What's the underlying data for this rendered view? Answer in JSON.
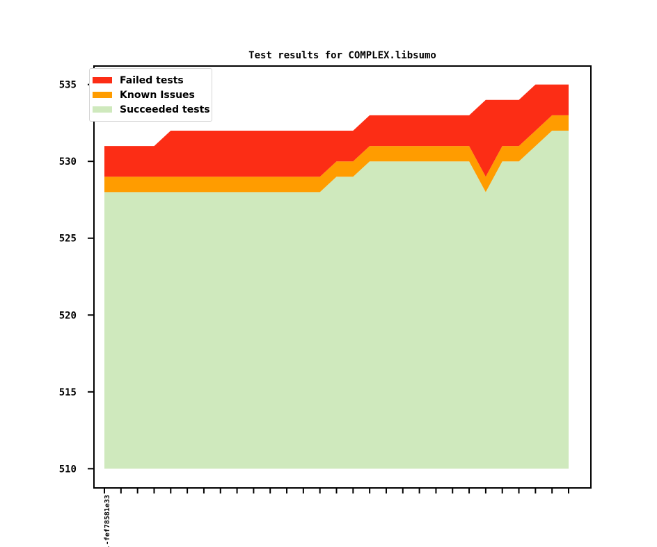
{
  "chart_data": {
    "type": "area",
    "stacked": true,
    "title": "Test results for COMPLEX.libsumo",
    "xlabel": "",
    "ylabel": "",
    "ylim": [
      508.75,
      536.25
    ],
    "yticks": [
      510,
      515,
      520,
      525,
      530,
      535
    ],
    "n_points": 29,
    "baseline": 510,
    "first_xtick_label": ".-fef78581e33",
    "legend_position": "upper left",
    "grid": false,
    "series": [
      {
        "name": "Failed tests",
        "color": "#fc2d15",
        "values": [
          2,
          2,
          2,
          2,
          3,
          3,
          3,
          3,
          3,
          3,
          3,
          3,
          3,
          3,
          2,
          2,
          2,
          2,
          2,
          2,
          2,
          2,
          2,
          5,
          3,
          3,
          3,
          2,
          2
        ]
      },
      {
        "name": "Known Issues",
        "color": "#ff9c00",
        "values": [
          1,
          1,
          1,
          1,
          1,
          1,
          1,
          1,
          1,
          1,
          1,
          1,
          1,
          1,
          1,
          1,
          1,
          1,
          1,
          1,
          1,
          1,
          1,
          1,
          1,
          1,
          1,
          1,
          1
        ]
      },
      {
        "name": "Succeeded tests",
        "color": "#cfe9bd",
        "values": [
          528,
          528,
          528,
          528,
          528,
          528,
          528,
          528,
          528,
          528,
          528,
          528,
          528,
          528,
          529,
          529,
          530,
          530,
          530,
          530,
          530,
          530,
          530,
          528,
          530,
          530,
          531,
          532,
          532
        ]
      }
    ],
    "totals_stacked_top": [
      531,
      531,
      531,
      531,
      532,
      532,
      532,
      532,
      532,
      532,
      532,
      532,
      532,
      532,
      532,
      532,
      533,
      533,
      533,
      533,
      533,
      533,
      533,
      534,
      534,
      534,
      535,
      535,
      535
    ]
  }
}
